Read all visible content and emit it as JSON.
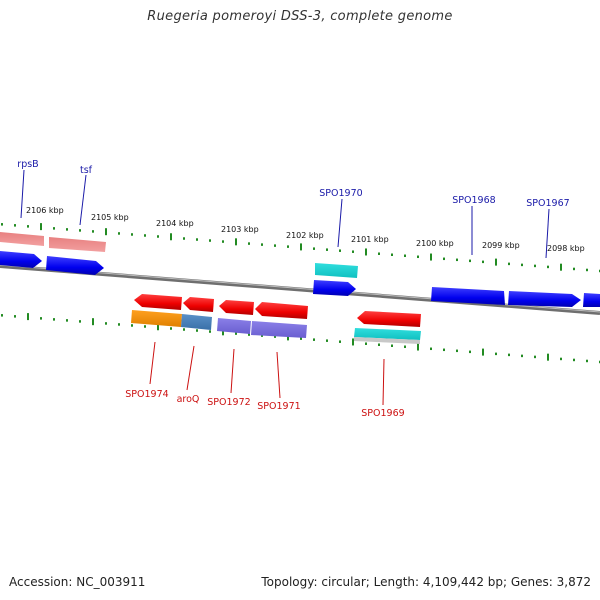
{
  "title": "Ruegeria pomeroyi DSS-3, complete genome",
  "footer": {
    "accession": "Accession: NC_003911",
    "summary": "Topology: circular; Length: 4,109,442 bp; Genes: 3,872"
  },
  "colors": {
    "forward_label": "#1a1aa8",
    "reverse_label": "#cc1111",
    "tick": "#228B22",
    "backbone": "#8a8a8a"
  },
  "ticks": [
    {
      "label": "2106 kbp"
    },
    {
      "label": "2105 kbp"
    },
    {
      "label": "2104 kbp"
    },
    {
      "label": "2103 kbp"
    },
    {
      "label": "2102 kbp"
    },
    {
      "label": "2101 kbp"
    },
    {
      "label": "2100 kbp"
    },
    {
      "label": "2099 kbp"
    },
    {
      "label": "2098 kbp"
    }
  ],
  "forward_labels": [
    "rpsB",
    "tsf",
    "SPO1970",
    "SPO1968",
    "SPO1967"
  ],
  "reverse_labels": [
    "SPO1974",
    "aroQ",
    "SPO1972",
    "SPO1971",
    "SPO1969"
  ]
}
